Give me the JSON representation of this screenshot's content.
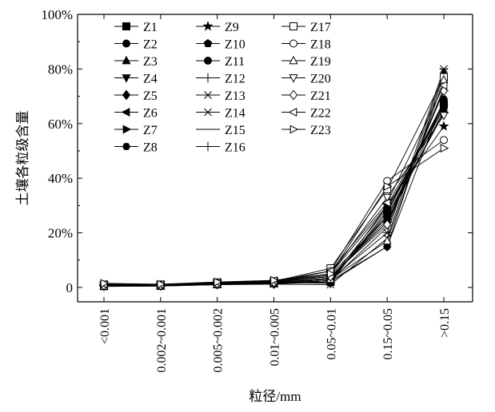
{
  "chart_data": {
    "type": "line",
    "title": "",
    "xlabel": "粒径/mm",
    "ylabel": "土壤各粒级含量",
    "ylim": [
      0,
      100
    ],
    "yticks": [
      0,
      20,
      40,
      60,
      80,
      100
    ],
    "ytick_labels": [
      "0",
      "20%",
      "40%",
      "60%",
      "80%",
      "100%"
    ],
    "categories": [
      "<0.001",
      "0.002~0.001",
      "0.005~0.002",
      "0.01~0.005",
      "0.05~0.01",
      "0.15~0.05",
      ">0.15"
    ],
    "legend_position": "top-left",
    "series": [
      {
        "name": "Z1",
        "marker": "square-filled",
        "values": [
          0.5,
          0.6,
          1.2,
          1.6,
          2.0,
          28,
          67
        ]
      },
      {
        "name": "Z2",
        "marker": "circle-filled",
        "values": [
          0.6,
          0.7,
          1.3,
          1.8,
          3.0,
          26,
          66
        ]
      },
      {
        "name": "Z3",
        "marker": "triangle-up-filled",
        "values": [
          0.4,
          0.5,
          1.0,
          1.5,
          2.5,
          27,
          68
        ]
      },
      {
        "name": "Z4",
        "marker": "triangle-down-filled",
        "values": [
          0.8,
          0.8,
          1.4,
          1.9,
          1.5,
          30,
          67
        ]
      },
      {
        "name": "Z5",
        "marker": "diamond-filled",
        "values": [
          0.5,
          0.6,
          1.1,
          1.3,
          2.0,
          15,
          78
        ]
      },
      {
        "name": "Z6",
        "marker": "triangle-left-filled",
        "values": [
          0.7,
          0.9,
          1.5,
          2.0,
          4.0,
          24,
          65
        ]
      },
      {
        "name": "Z7",
        "marker": "triangle-right-filled",
        "values": [
          0.6,
          0.8,
          1.3,
          1.7,
          3.5,
          25,
          64
        ]
      },
      {
        "name": "Z8",
        "marker": "hexagon-filled",
        "values": [
          0.5,
          0.6,
          1.2,
          1.4,
          2.5,
          15,
          69
        ]
      },
      {
        "name": "Z9",
        "marker": "star-filled",
        "values": [
          0.6,
          0.8,
          1.3,
          1.9,
          5.0,
          30,
          59
        ]
      },
      {
        "name": "Z10",
        "marker": "pentagon-filled",
        "values": [
          0.7,
          0.8,
          1.4,
          1.7,
          3.0,
          29,
          66
        ]
      },
      {
        "name": "Z11",
        "marker": "circle-filled",
        "values": [
          0.6,
          0.6,
          1.1,
          1.6,
          2.0,
          28,
          68
        ]
      },
      {
        "name": "Z12",
        "marker": "plus",
        "values": [
          0.5,
          0.7,
          1.3,
          1.8,
          4.5,
          26,
          64
        ]
      },
      {
        "name": "Z13",
        "marker": "x",
        "values": [
          0.4,
          0.5,
          1.0,
          1.2,
          1.0,
          18,
          79
        ]
      },
      {
        "name": "Z14",
        "marker": "asterisk",
        "values": [
          0.6,
          0.7,
          1.2,
          1.6,
          3.0,
          20,
          80
        ]
      },
      {
        "name": "Z15",
        "marker": "none",
        "values": [
          0.5,
          0.6,
          1.1,
          1.5,
          2.5,
          22,
          73
        ]
      },
      {
        "name": "Z16",
        "marker": "plus",
        "values": [
          0.7,
          0.9,
          1.5,
          2.1,
          4.0,
          24,
          72
        ]
      },
      {
        "name": "Z17",
        "marker": "square-open",
        "values": [
          1.0,
          1.0,
          1.8,
          2.2,
          7.0,
          36,
          77
        ]
      },
      {
        "name": "Z18",
        "marker": "circle-open",
        "values": [
          0.8,
          0.9,
          1.6,
          2.0,
          6.0,
          39,
          54
        ]
      },
      {
        "name": "Z19",
        "marker": "triangle-up-open",
        "values": [
          0.5,
          0.6,
          1.2,
          1.8,
          3.0,
          17,
          76
        ]
      },
      {
        "name": "Z20",
        "marker": "triangle-down-open",
        "values": [
          0.9,
          1.0,
          1.7,
          2.3,
          5.0,
          33,
          63
        ]
      },
      {
        "name": "Z21",
        "marker": "diamond-open",
        "values": [
          0.7,
          0.8,
          1.4,
          1.9,
          4.0,
          23,
          72
        ]
      },
      {
        "name": "Z22",
        "marker": "triangle-left-open",
        "values": [
          1.2,
          1.1,
          1.9,
          2.5,
          6.0,
          31,
          74
        ]
      },
      {
        "name": "Z23",
        "marker": "triangle-right-open",
        "values": [
          1.5,
          1.2,
          2.0,
          2.6,
          5.0,
          37,
          51
        ]
      }
    ]
  }
}
